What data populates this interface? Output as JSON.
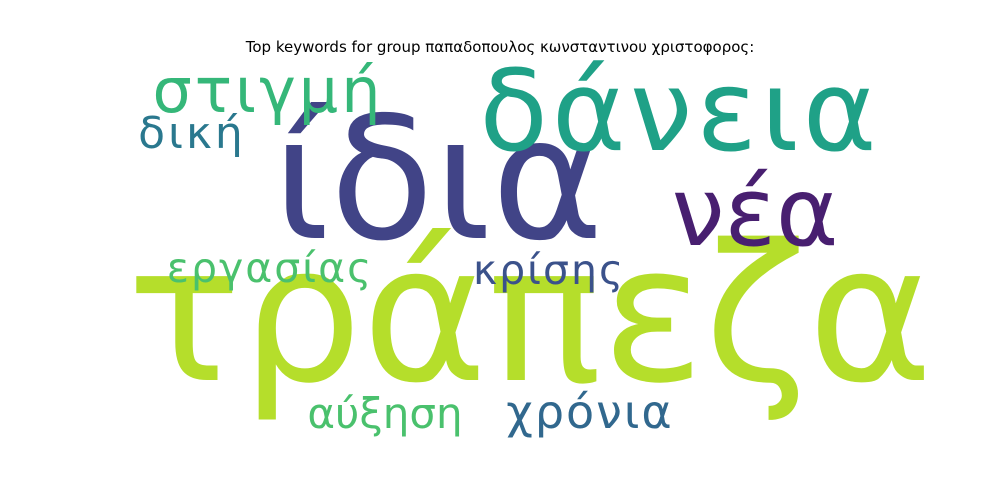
{
  "chart_data": {
    "type": "wordcloud",
    "title": "Top keywords for group παπαδοπουλος κωνσταντινου χριστοφορος:",
    "words": [
      {
        "text": "τράπεζα",
        "rank": 1,
        "color": "#b5de2b"
      },
      {
        "text": "ίδια",
        "rank": 2,
        "color": "#414487"
      },
      {
        "text": "δάνεια",
        "rank": 3,
        "color": "#1fa187"
      },
      {
        "text": "νέα",
        "rank": 4,
        "color": "#481f70"
      },
      {
        "text": "στιγμή",
        "rank": 5,
        "color": "#35b779"
      },
      {
        "text": "χρόνια",
        "rank": 6,
        "color": "#31688e"
      },
      {
        "text": "δική",
        "rank": 7,
        "color": "#2a788e"
      },
      {
        "text": "εργασίας",
        "rank": 8,
        "color": "#4ac16d"
      },
      {
        "text": "κρίσης",
        "rank": 9,
        "color": "#3b528b"
      },
      {
        "text": "αύξηση",
        "rank": 10,
        "color": "#4ac16d"
      }
    ]
  }
}
